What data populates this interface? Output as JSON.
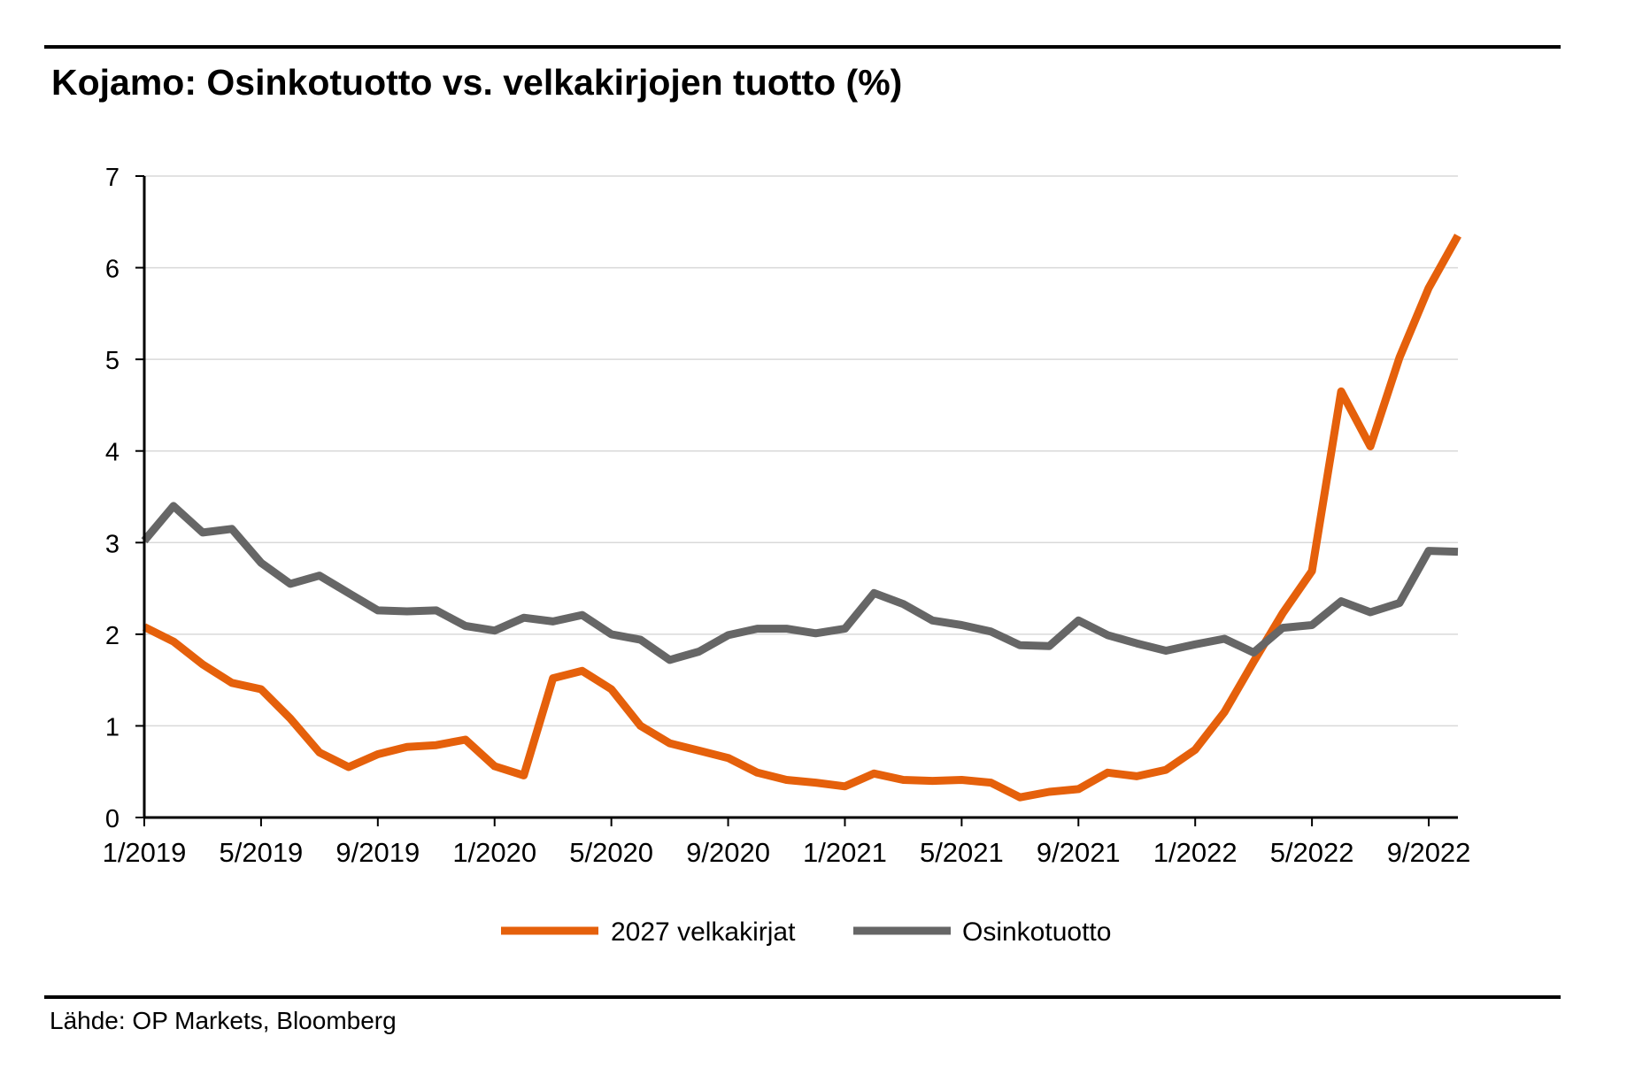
{
  "title": "Kojamo: Osinkotuotto vs. velkakirjojen tuotto (%)",
  "source": "Lähde: OP Markets, Bloomberg",
  "chart_data": {
    "type": "line",
    "x": [
      "1/2019",
      "2/2019",
      "3/2019",
      "4/2019",
      "5/2019",
      "6/2019",
      "7/2019",
      "8/2019",
      "9/2019",
      "10/2019",
      "11/2019",
      "12/2019",
      "1/2020",
      "2/2020",
      "3/2020",
      "4/2020",
      "5/2020",
      "6/2020",
      "7/2020",
      "8/2020",
      "9/2020",
      "10/2020",
      "11/2020",
      "12/2020",
      "1/2021",
      "2/2021",
      "3/2021",
      "4/2021",
      "5/2021",
      "6/2021",
      "7/2021",
      "8/2021",
      "9/2021",
      "10/2021",
      "11/2021",
      "12/2021",
      "1/2022",
      "2/2022",
      "3/2022",
      "4/2022",
      "5/2022",
      "6/2022",
      "7/2022",
      "8/2022",
      "9/2022",
      "10/2022"
    ],
    "xticks": [
      "1/2019",
      "5/2019",
      "9/2019",
      "1/2020",
      "5/2020",
      "9/2020",
      "1/2021",
      "5/2021",
      "9/2021",
      "1/2022",
      "5/2022",
      "9/2022"
    ],
    "ylim": [
      0,
      7
    ],
    "yticks": [
      "0",
      "1",
      "2",
      "3",
      "4",
      "5",
      "6",
      "7"
    ],
    "grid": true,
    "legend_position": "bottom",
    "series": [
      {
        "name": "2027 velkakirjat",
        "color": "#E5600B",
        "values": [
          2.08,
          1.92,
          1.67,
          1.47,
          1.4,
          1.08,
          0.71,
          0.55,
          0.69,
          0.77,
          0.79,
          0.85,
          0.56,
          0.46,
          1.52,
          1.6,
          1.4,
          1.0,
          0.81,
          0.73,
          0.65,
          0.49,
          0.41,
          0.38,
          0.34,
          0.48,
          0.41,
          0.4,
          0.41,
          0.38,
          0.22,
          0.28,
          0.31,
          0.49,
          0.45,
          0.52,
          0.74,
          1.15,
          1.7,
          2.23,
          2.69,
          4.65,
          4.05,
          5.02,
          5.78,
          6.35
        ]
      },
      {
        "name": "Osinkotuotto",
        "color": "#666666",
        "values": [
          3.02,
          3.4,
          3.11,
          3.15,
          2.78,
          2.55,
          2.64,
          2.45,
          2.26,
          2.25,
          2.26,
          2.09,
          2.04,
          2.18,
          2.14,
          2.21,
          2.0,
          1.94,
          1.72,
          1.81,
          1.99,
          2.06,
          2.06,
          2.01,
          2.06,
          2.45,
          2.33,
          2.15,
          2.1,
          2.03,
          1.88,
          1.87,
          2.15,
          1.99,
          1.9,
          1.82,
          1.89,
          1.95,
          1.8,
          2.07,
          2.1,
          2.36,
          2.24,
          2.34,
          2.91,
          2.9
        ]
      }
    ]
  }
}
